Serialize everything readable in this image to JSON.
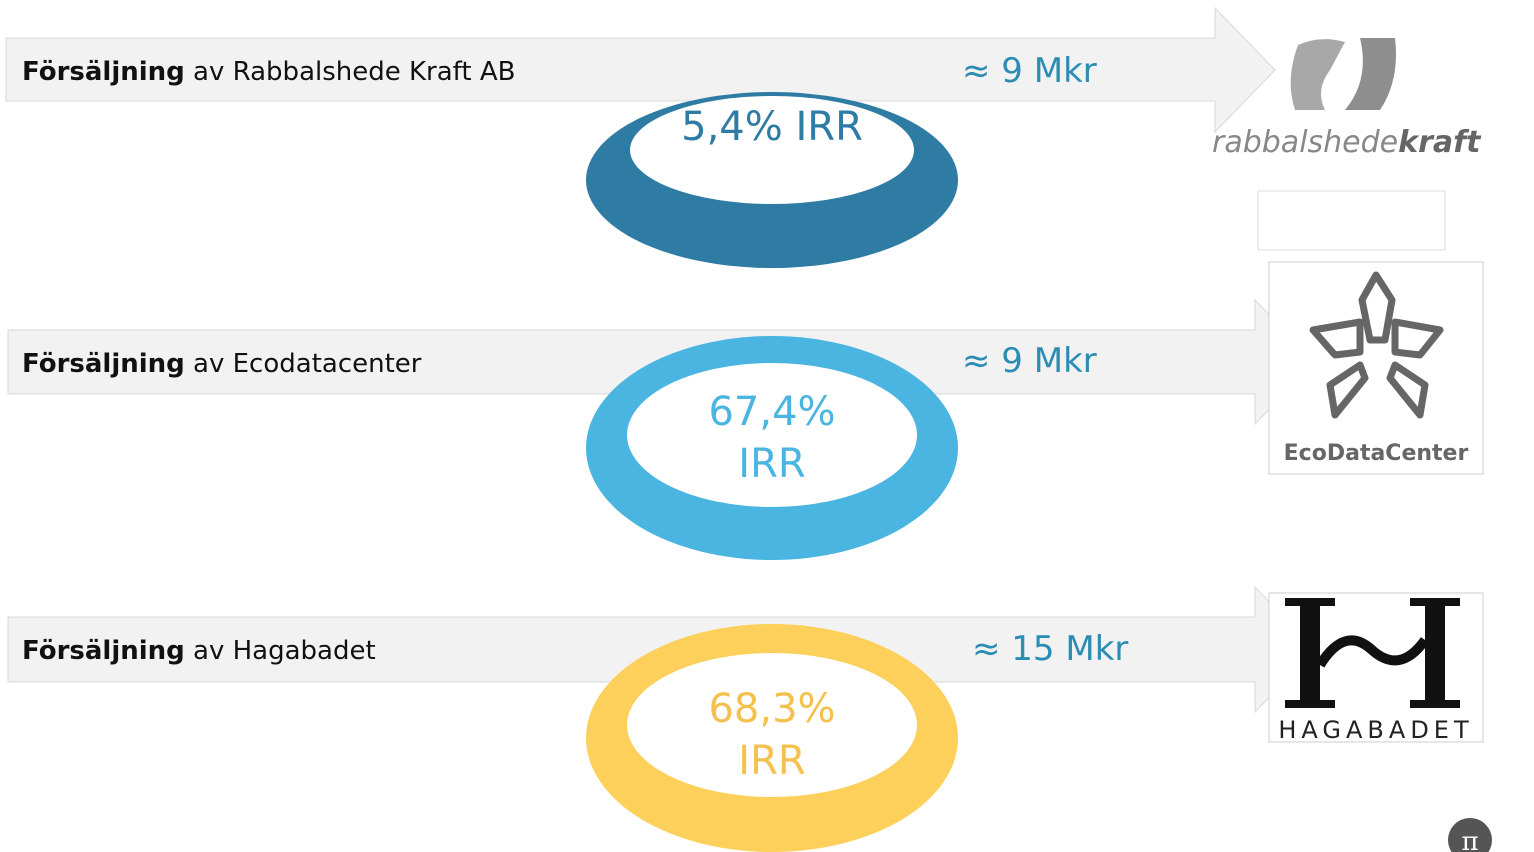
{
  "rows": [
    {
      "label_bold": "Försäljning",
      "label_rest": "av Rabbalshede Kraft AB",
      "value": "≈ 9 Mkr",
      "ring_lines": [
        "5,4% IRR"
      ]
    },
    {
      "label_bold": "Försäljning",
      "label_rest": "av Ecodatacenter",
      "value": "≈ 9 Mkr",
      "ring_lines": [
        "67,4%",
        "IRR"
      ]
    },
    {
      "label_bold": "Försäljning",
      "label_rest": "av Hagabadet",
      "value": "≈ 15 Mkr",
      "ring_lines": [
        "68,3%",
        "IRR"
      ]
    }
  ],
  "logos": {
    "rabbalshede_a": "rabbalshede",
    "rabbalshede_b": "kraft",
    "ecodatacenter": "EcoDataCenter",
    "hagabadet": "HAGABADET",
    "footer": "π"
  }
}
